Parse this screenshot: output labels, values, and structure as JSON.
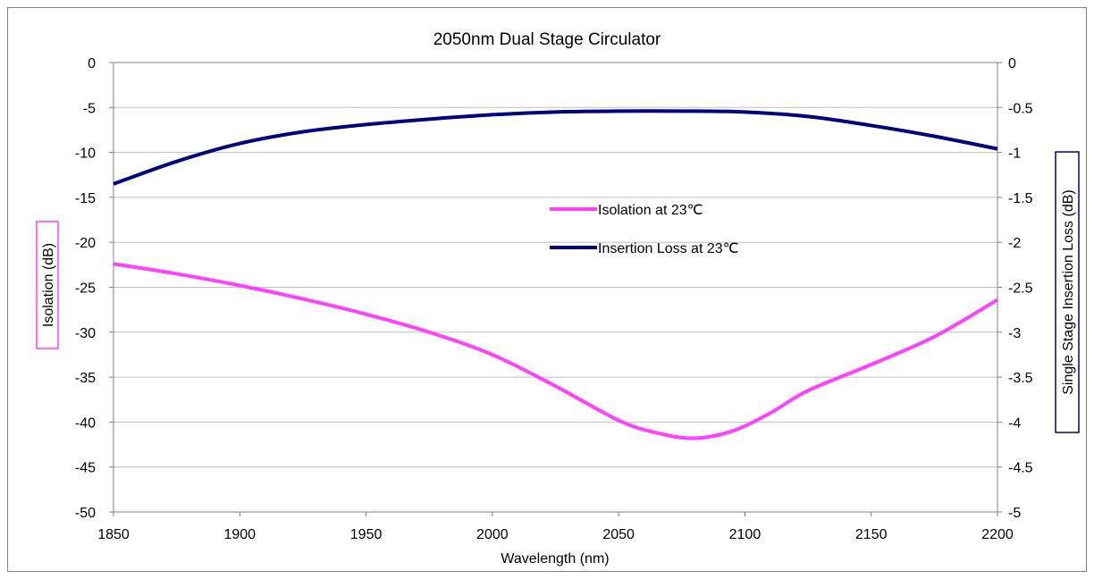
{
  "chart_data": {
    "type": "line",
    "title": "2050nm Dual Stage Circulator",
    "xlabel": "Wavelength (nm)",
    "ylabel_left": "Isolation (dB)",
    "ylabel_right": "Single Stage Insertion Loss (dB)",
    "xlim": [
      1850,
      2200
    ],
    "ylim_left": [
      -50,
      0
    ],
    "ylim_right": [
      -5,
      0
    ],
    "x_ticks": [
      "1850",
      "1900",
      "1950",
      "2000",
      "2050",
      "2100",
      "2150",
      "2200"
    ],
    "y_ticks_left": [
      "0",
      "-5",
      "-10",
      "-15",
      "-20",
      "-25",
      "-30",
      "-35",
      "-40",
      "-45",
      "-50"
    ],
    "y_ticks_right": [
      "0",
      "-0.5",
      "-1",
      "-1.5",
      "-2",
      "-2.5",
      "-3",
      "-3.5",
      "-4",
      "-4.5",
      "-5"
    ],
    "grid": "horizontal",
    "legend_position": "center-right",
    "series": [
      {
        "name": "Isolation at 23℃",
        "axis": "left",
        "color": "#ff40ff",
        "x": [
          1850,
          1875,
          1900,
          1925,
          1950,
          1975,
          2000,
          2025,
          2050,
          2065,
          2080,
          2095,
          2110,
          2125,
          2150,
          2175,
          2200
        ],
        "y": [
          -22.4,
          -23.5,
          -24.8,
          -26.3,
          -28.0,
          -30.0,
          -32.5,
          -36.0,
          -39.8,
          -41.2,
          -41.8,
          -41.0,
          -39.0,
          -36.5,
          -33.6,
          -30.5,
          -26.4
        ]
      },
      {
        "name": "Insertion Loss at 23℃",
        "axis": "right",
        "color": "#000080",
        "x": [
          1850,
          1875,
          1900,
          1925,
          1950,
          1975,
          2000,
          2025,
          2050,
          2075,
          2100,
          2125,
          2150,
          2175,
          2200
        ],
        "y": [
          -1.35,
          -1.1,
          -0.9,
          -0.77,
          -0.69,
          -0.63,
          -0.58,
          -0.55,
          -0.54,
          -0.54,
          -0.55,
          -0.6,
          -0.7,
          -0.82,
          -0.96
        ]
      }
    ]
  }
}
